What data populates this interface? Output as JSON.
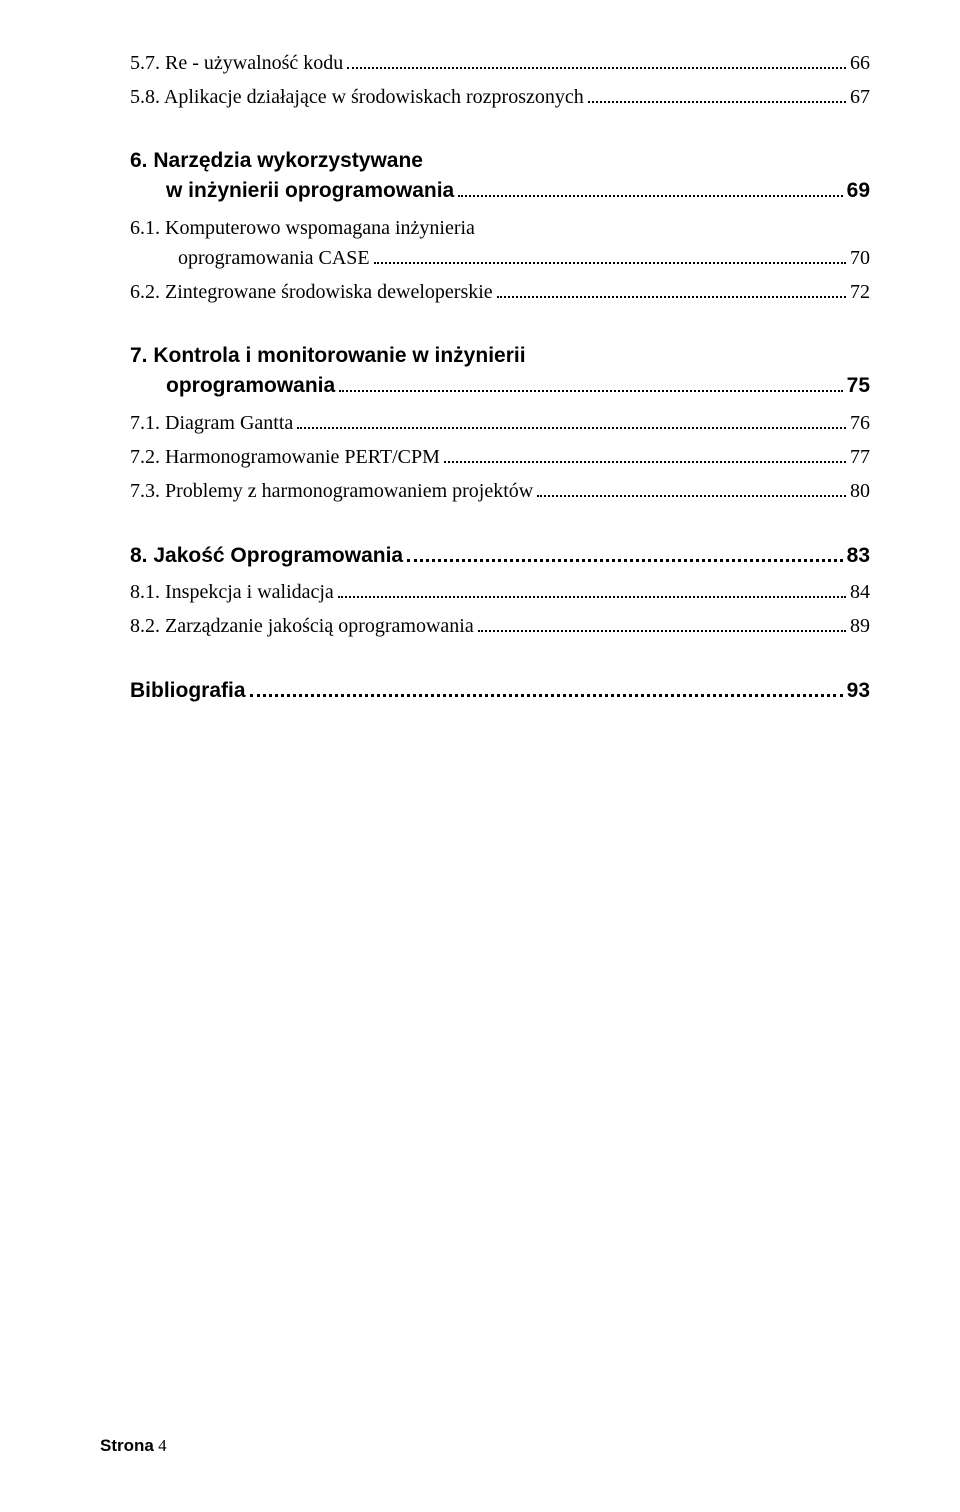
{
  "entries": {
    "e57": {
      "label": "5.7. Re - używalność kodu",
      "page": "66"
    },
    "e58": {
      "label": "5.8. Aplikacje działające w środowiskach rozproszonych",
      "page": "67"
    },
    "c6_l1": "6. Narzędzia wykorzystywane",
    "c6_l2": "w inżynierii oprogramowania",
    "c6_page": "69",
    "e61_l1": "6.1. Komputerowo wspomagana inżynieria",
    "e61_l2": "oprogramowania CASE",
    "e61_page": "70",
    "e62": {
      "label": "6.2. Zintegrowane środowiska deweloperskie",
      "page": "72"
    },
    "c7_l1": "7. Kontrola i monitorowanie w inżynierii",
    "c7_l2": "oprogramowania",
    "c7_page": "75",
    "e71": {
      "label": "7.1. Diagram Gantta",
      "page": "76"
    },
    "e72": {
      "label": "7.2. Harmonogramowanie PERT/CPM",
      "page": "77"
    },
    "e73": {
      "label": "7.3. Problemy z harmonogramowaniem projektów",
      "page": "80"
    },
    "c8": {
      "label": "8. Jakość Oprogramowania",
      "page": "83"
    },
    "e81": {
      "label": "8.1. Inspekcja i walidacja",
      "page": "84"
    },
    "e82": {
      "label": "8.2. Zarządzanie jakością oprogramowania",
      "page": "89"
    },
    "bib": {
      "label": "Bibliografia",
      "page": "93"
    }
  },
  "footer": {
    "label": "Strona",
    "num": "4"
  }
}
